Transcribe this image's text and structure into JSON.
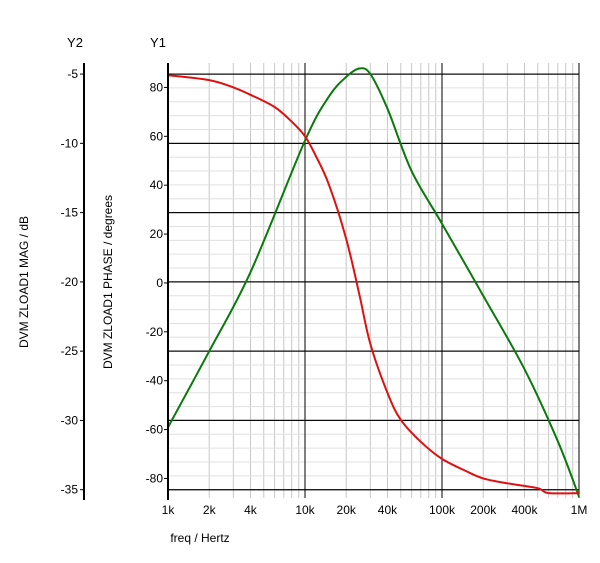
{
  "chart_data": {
    "type": "line",
    "x_scale": "log",
    "xlabel": "freq / Hertz",
    "xlim": [
      1000,
      1000000
    ],
    "x_ticks": [
      {
        "value": 1000,
        "label": "1k"
      },
      {
        "value": 2000,
        "label": "2k"
      },
      {
        "value": 4000,
        "label": "4k"
      },
      {
        "value": 10000,
        "label": "10k"
      },
      {
        "value": 20000,
        "label": "20k"
      },
      {
        "value": 40000,
        "label": "40k"
      },
      {
        "value": 100000,
        "label": "100k"
      },
      {
        "value": 200000,
        "label": "200k"
      },
      {
        "value": 400000,
        "label": "400k"
      },
      {
        "value": 1000000,
        "label": "1M"
      }
    ],
    "y1": {
      "name": "Y1",
      "label": "DVM ZLOAD1 PHASE / degrees",
      "ylim": [
        -88,
        90
      ],
      "ticks": [
        {
          "value": 80,
          "label": "80"
        },
        {
          "value": 60,
          "label": "60"
        },
        {
          "value": 40,
          "label": "40"
        },
        {
          "value": 20,
          "label": "20"
        },
        {
          "value": 0,
          "label": "0"
        },
        {
          "value": -20,
          "label": "-20"
        },
        {
          "value": -40,
          "label": "-40"
        },
        {
          "value": -60,
          "label": "-60"
        },
        {
          "value": -80,
          "label": "-80"
        }
      ]
    },
    "y2": {
      "name": "Y2",
      "label": "DVM ZLOAD1 MAG / dB",
      "ylim": [
        -35.6,
        -4.2
      ],
      "ticks": [
        {
          "value": -5,
          "label": "-5"
        },
        {
          "value": -10,
          "label": "-10"
        },
        {
          "value": -15,
          "label": "-15"
        },
        {
          "value": -20,
          "label": "-20"
        },
        {
          "value": -25,
          "label": "-25"
        },
        {
          "value": -30,
          "label": "-30"
        },
        {
          "value": -35,
          "label": "-35"
        }
      ]
    },
    "series": [
      {
        "name": "DVM ZLOAD1 MAG",
        "axis": "y2",
        "color": "#0a7a0a",
        "x": [
          1000,
          2000,
          4000,
          10000,
          15000,
          20000,
          25000,
          30000,
          40000,
          60000,
          100000,
          200000,
          400000,
          700000,
          1000000
        ],
        "y": [
          -30.5,
          -25.0,
          -19.3,
          -9.8,
          -6.6,
          -5.2,
          -4.6,
          -5.0,
          -7.5,
          -12.0,
          -15.8,
          -21.0,
          -26.3,
          -31.5,
          -35.5
        ]
      },
      {
        "name": "DVM ZLOAD1 PHASE",
        "axis": "y1",
        "color": "#e01010",
        "x": [
          1000,
          2000,
          3000,
          4000,
          6000,
          8000,
          10000,
          12000,
          15000,
          20000,
          25000,
          30000,
          40000,
          50000,
          70000,
          100000,
          150000,
          200000,
          300000,
          500000,
          600000,
          1000000
        ],
        "y": [
          85,
          83,
          80,
          77,
          72,
          66,
          60,
          52,
          40,
          18,
          -5,
          -25,
          -45,
          -56,
          -65,
          -72,
          -77,
          -80,
          -82,
          -84,
          -86,
          -86
        ]
      }
    ]
  }
}
